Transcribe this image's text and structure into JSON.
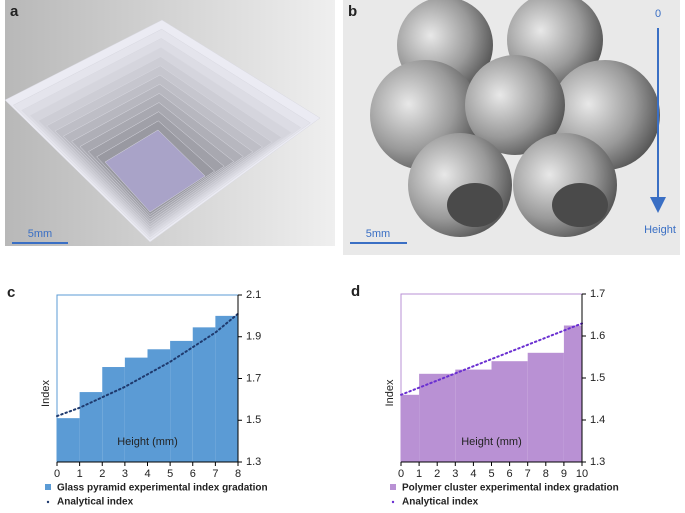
{
  "panels": [
    {
      "label": "a",
      "scale": "5mm"
    },
    {
      "label": "b",
      "scale": "5mm",
      "arrow_start": "0",
      "arrow_end": "Height"
    }
  ],
  "chart_data": [
    {
      "type": "histogram",
      "panel_label": "c",
      "xlabel": "Height (mm)",
      "ylabel": "Index",
      "name": "Glass pyramid experimental index gradation",
      "color": "#5b9bd5",
      "bins": [
        0,
        1,
        2,
        3,
        4,
        5,
        6,
        7,
        8
      ],
      "values": [
        1.51,
        1.635,
        1.755,
        1.8,
        1.84,
        1.88,
        1.945,
        2.0
      ],
      "line": {
        "name": "Analytical index",
        "color": "#1f3a6e",
        "x": [
          0,
          1,
          2,
          3,
          4,
          5,
          6,
          7,
          8
        ],
        "values": [
          1.52,
          1.56,
          1.61,
          1.66,
          1.72,
          1.78,
          1.85,
          1.92,
          2.01
        ]
      },
      "xlim": [
        0,
        8
      ],
      "xticks": [
        0,
        1,
        2,
        3,
        4,
        5,
        6,
        7,
        8
      ],
      "ylim": [
        1.3,
        2.1
      ],
      "yticks": [
        1.3,
        1.5,
        1.7,
        1.9,
        2.1
      ]
    },
    {
      "type": "histogram",
      "panel_label": "d",
      "xlabel": "Height (mm)",
      "ylabel": "Index",
      "name": "Polymer cluster experimental index gradation",
      "color": "#b991d4",
      "bins": [
        0,
        1,
        3,
        5,
        7,
        9,
        10
      ],
      "values": [
        1.46,
        1.51,
        1.52,
        1.54,
        1.56,
        1.625
      ],
      "line": {
        "name": "Analytical index",
        "color": "#6a2fd1",
        "x": [
          0,
          10
        ],
        "values": [
          1.46,
          1.63
        ]
      },
      "xlim": [
        0,
        10
      ],
      "xticks": [
        0,
        1,
        2,
        3,
        4,
        5,
        6,
        7,
        8,
        9,
        10
      ],
      "ylim": [
        1.3,
        1.7
      ],
      "yticks": [
        1.3,
        1.4,
        1.5,
        1.6,
        1.7
      ]
    }
  ]
}
